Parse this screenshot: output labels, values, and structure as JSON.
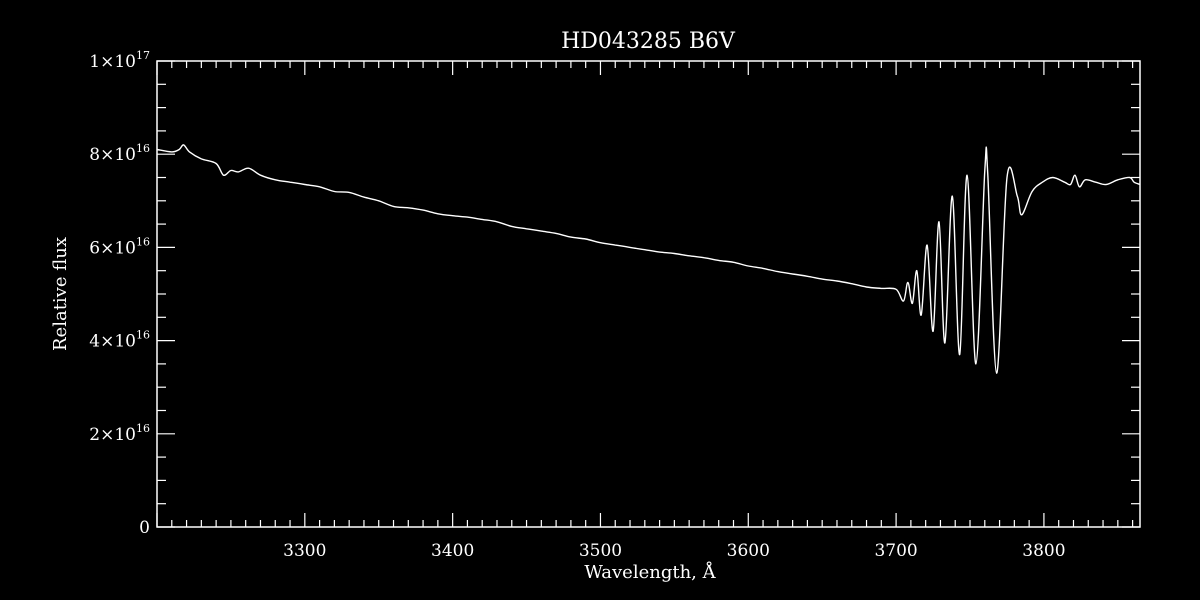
{
  "chart_data": {
    "type": "line",
    "title": "HD043285   B6V",
    "xlabel": "Wavelength, Å",
    "ylabel": "Relative flux",
    "xlim": [
      3200,
      3865
    ],
    "ylim": [
      0,
      1e+17
    ],
    "x_ticks": [
      3300,
      3400,
      3500,
      3600,
      3700,
      3800
    ],
    "y_ticks": [
      {
        "value": 0,
        "mant": "0",
        "exp": ""
      },
      {
        "value": 2e+16,
        "mant": "2×10",
        "exp": "16"
      },
      {
        "value": 4e+16,
        "mant": "4×10",
        "exp": "16"
      },
      {
        "value": 6e+16,
        "mant": "6×10",
        "exp": "16"
      },
      {
        "value": 8e+16,
        "mant": "8×10",
        "exp": "16"
      },
      {
        "value": 1e+17,
        "mant": "1×10",
        "exp": "17"
      }
    ],
    "grid": false,
    "colors": {
      "background": "#000000",
      "foreground": "#ffffff"
    },
    "series": [
      {
        "x": [
          3200,
          3210,
          3215,
          3218,
          3222,
          3230,
          3240,
          3245,
          3250,
          3255,
          3262,
          3270,
          3280,
          3290,
          3300,
          3310,
          3320,
          3330,
          3340,
          3350,
          3360,
          3370,
          3380,
          3390,
          3400,
          3410,
          3420,
          3430,
          3440,
          3450,
          3460,
          3470,
          3480,
          3490,
          3500,
          3510,
          3520,
          3530,
          3540,
          3550,
          3560,
          3570,
          3580,
          3590,
          3600,
          3610,
          3620,
          3630,
          3640,
          3650,
          3660,
          3670,
          3680,
          3690,
          3700,
          3705,
          3708,
          3711,
          3714,
          3717,
          3721,
          3725,
          3729,
          3733,
          3738,
          3743,
          3748,
          3754,
          3760,
          3762,
          3768,
          3775,
          3782,
          3785,
          3792,
          3799,
          3806,
          3814,
          3818,
          3821,
          3824,
          3828,
          3835,
          3842,
          3850,
          3858,
          3861,
          3865
        ],
        "y": [
          8.1e+16,
          8.05e+16,
          8.1e+16,
          8.2e+16,
          8.05e+16,
          7.9e+16,
          7.8e+16,
          7.55e+16,
          7.65e+16,
          7.62e+16,
          7.7e+16,
          7.55e+16,
          7.45e+16,
          7.4e+16,
          7.35e+16,
          7.3e+16,
          7.2e+16,
          7.18e+16,
          7.08e+16,
          7e+16,
          6.88e+16,
          6.85e+16,
          6.8e+16,
          6.72e+16,
          6.68e+16,
          6.65e+16,
          6.6e+16,
          6.55e+16,
          6.45e+16,
          6.4e+16,
          6.35e+16,
          6.3e+16,
          6.22e+16,
          6.18e+16,
          6.1e+16,
          6.05e+16,
          6e+16,
          5.95e+16,
          5.9e+16,
          5.87e+16,
          5.82e+16,
          5.78e+16,
          5.72e+16,
          5.68e+16,
          5.6e+16,
          5.55e+16,
          5.48e+16,
          5.43e+16,
          5.38e+16,
          5.32e+16,
          5.28e+16,
          5.22e+16,
          5.15e+16,
          5.12e+16,
          5.1e+16,
          4.85e+16,
          5.25e+16,
          4.8e+16,
          5.5e+16,
          4.55e+16,
          6.05e+16,
          4.2e+16,
          6.55e+16,
          3.95e+16,
          7.1e+16,
          3.7e+16,
          7.55e+16,
          3.5e+16,
          7.65e+16,
          7.6e+16,
          3.3e+16,
          7.5e+16,
          7.1e+16,
          6.7e+16,
          7.2e+16,
          7.4e+16,
          7.5e+16,
          7.4e+16,
          7.35e+16,
          7.55e+16,
          7.3e+16,
          7.45e+16,
          7.4e+16,
          7.35e+16,
          7.45e+16,
          7.5e+16,
          7.4e+16,
          7.35e+16
        ]
      }
    ]
  }
}
